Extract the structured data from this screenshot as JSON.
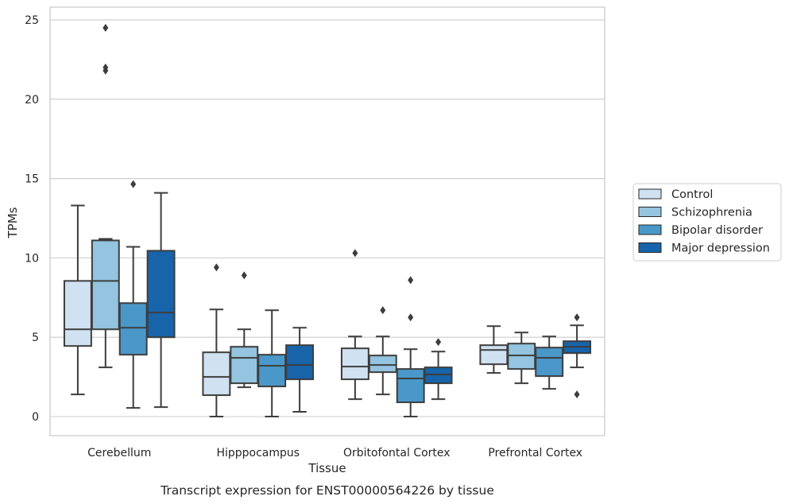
{
  "chart_data": {
    "type": "boxplot",
    "xlabel": "Tissue",
    "ylabel": "TPMs",
    "caption": "Transcript expression for ENST00000564226 by tissue",
    "ylim": [
      -1.2,
      25.8
    ],
    "yticks": [
      0,
      5,
      10,
      15,
      20,
      25
    ],
    "grid": "horizontal",
    "legend_position": "right",
    "categories": [
      "Cerebellum",
      "Hipppocampus",
      "Orbitofontal Cortex",
      "Prefrontal Cortex"
    ],
    "series": [
      {
        "name": "Control",
        "color": "#d0e1f2",
        "boxes": [
          {
            "whislo": 1.4,
            "q1": 4.45,
            "med": 5.5,
            "q3": 8.55,
            "whishi": 13.3,
            "fliers": []
          },
          {
            "whislo": 0.0,
            "q1": 1.35,
            "med": 2.5,
            "q3": 4.05,
            "whishi": 6.75,
            "fliers": [
              9.4
            ]
          },
          {
            "whislo": 1.1,
            "q1": 2.35,
            "med": 3.15,
            "q3": 4.3,
            "whishi": 5.05,
            "fliers": [
              10.3
            ]
          },
          {
            "whislo": 2.75,
            "q1": 3.3,
            "med": 4.2,
            "q3": 4.5,
            "whishi": 5.7,
            "fliers": []
          }
        ]
      },
      {
        "name": "Schizophrenia",
        "color": "#94c4df",
        "boxes": [
          {
            "whislo": 3.1,
            "q1": 5.5,
            "med": 8.55,
            "q3": 11.1,
            "whishi": 11.2,
            "fliers": [
              21.8,
              22.0,
              24.5
            ]
          },
          {
            "whislo": 1.85,
            "q1": 2.1,
            "med": 3.7,
            "q3": 4.4,
            "whishi": 5.5,
            "fliers": [
              8.9
            ]
          },
          {
            "whislo": 1.4,
            "q1": 2.8,
            "med": 3.25,
            "q3": 3.85,
            "whishi": 5.05,
            "fliers": [
              6.7
            ]
          },
          {
            "whislo": 2.1,
            "q1": 3.0,
            "med": 3.85,
            "q3": 4.6,
            "whishi": 5.3,
            "fliers": []
          }
        ]
      },
      {
        "name": "Bipolar disorder",
        "color": "#4a98c9",
        "boxes": [
          {
            "whislo": 0.55,
            "q1": 3.9,
            "med": 5.6,
            "q3": 7.15,
            "whishi": 10.7,
            "fliers": [
              14.65
            ]
          },
          {
            "whislo": 0.0,
            "q1": 1.9,
            "med": 3.2,
            "q3": 3.9,
            "whishi": 6.7,
            "fliers": []
          },
          {
            "whislo": 0.0,
            "q1": 0.9,
            "med": 2.4,
            "q3": 3.0,
            "whishi": 4.25,
            "fliers": [
              6.25,
              8.6
            ]
          },
          {
            "whislo": 1.75,
            "q1": 2.55,
            "med": 3.7,
            "q3": 4.35,
            "whishi": 5.05,
            "fliers": []
          }
        ]
      },
      {
        "name": "Major depression",
        "color": "#1764ab",
        "boxes": [
          {
            "whislo": 0.6,
            "q1": 5.0,
            "med": 6.55,
            "q3": 10.45,
            "whishi": 14.1,
            "fliers": []
          },
          {
            "whislo": 0.3,
            "q1": 2.35,
            "med": 3.25,
            "q3": 4.5,
            "whishi": 5.6,
            "fliers": []
          },
          {
            "whislo": 1.1,
            "q1": 2.1,
            "med": 2.65,
            "q3": 3.1,
            "whishi": 4.1,
            "fliers": [
              4.7
            ]
          },
          {
            "whislo": 3.1,
            "q1": 4.0,
            "med": 4.4,
            "q3": 4.75,
            "whishi": 5.75,
            "fliers": [
              1.4,
              6.25
            ]
          }
        ]
      }
    ]
  }
}
